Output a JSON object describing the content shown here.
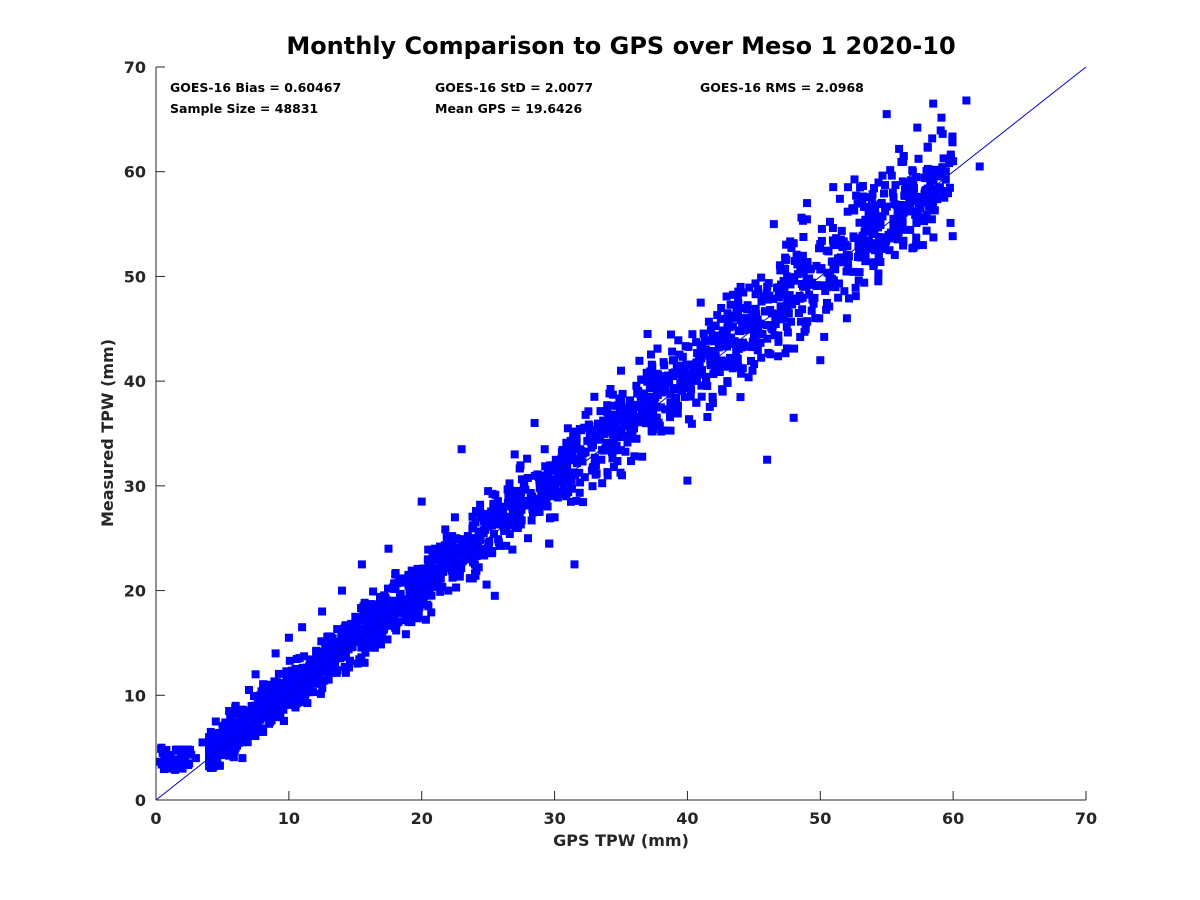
{
  "chart_data": {
    "type": "scatter",
    "title": "Monthly Comparison to GPS over Meso 1 2020-10",
    "xlabel": "GPS TPW (mm)",
    "ylabel": "Measured TPW (mm)",
    "xlim": [
      0,
      70
    ],
    "ylim": [
      0,
      70
    ],
    "xticks": [
      "0",
      "10",
      "20",
      "30",
      "40",
      "50",
      "60",
      "70"
    ],
    "yticks": [
      "0",
      "10",
      "20",
      "30",
      "40",
      "50",
      "60",
      "70"
    ],
    "grid": false,
    "marker_color": "#0000ff",
    "reference_line": {
      "from": [
        0,
        0
      ],
      "to": [
        70,
        70
      ],
      "color": "#0000cc"
    },
    "stats": {
      "bias": "GOES-16 Bias = 0.60467",
      "std": "GOES-16 StD = 2.0077",
      "rms": "GOES-16 RMS = 2.0968",
      "sample_size": "Sample Size = 48831",
      "mean_gps": "Mean GPS = 19.6426"
    },
    "series": [
      {
        "sample_points": [
          [
            0.5,
            4.5
          ],
          [
            1.0,
            4.3
          ],
          [
            1.5,
            4.8
          ],
          [
            2.0,
            3.0
          ],
          [
            2.5,
            3.5
          ],
          [
            3.0,
            4.0
          ],
          [
            3.5,
            5.5
          ],
          [
            4.0,
            6.0
          ],
          [
            4.5,
            7.5
          ],
          [
            5.0,
            5.0
          ],
          [
            5.5,
            8.5
          ],
          [
            6.0,
            9.0
          ],
          [
            6.5,
            4.0
          ],
          [
            7.0,
            10.5
          ],
          [
            7.5,
            12.0
          ],
          [
            8.0,
            6.5
          ],
          [
            8.5,
            11.0
          ],
          [
            9.0,
            14.0
          ],
          [
            9.5,
            9.0
          ],
          [
            10.0,
            15.5
          ],
          [
            10.5,
            12.0
          ],
          [
            11.0,
            16.5
          ],
          [
            12.0,
            13.0
          ],
          [
            12.5,
            18.0
          ],
          [
            13.0,
            11.5
          ],
          [
            14.0,
            20.0
          ],
          [
            15.0,
            17.5
          ],
          [
            15.5,
            22.5
          ],
          [
            16.0,
            15.0
          ],
          [
            17.0,
            19.0
          ],
          [
            17.5,
            24.0
          ],
          [
            18.0,
            17.0
          ],
          [
            19.0,
            21.5
          ],
          [
            20.0,
            28.5
          ],
          [
            20.5,
            18.5
          ],
          [
            21.0,
            24.0
          ],
          [
            22.0,
            20.0
          ],
          [
            22.5,
            27.0
          ],
          [
            23.0,
            33.5
          ],
          [
            24.0,
            22.5
          ],
          [
            25.0,
            29.5
          ],
          [
            25.5,
            19.5
          ],
          [
            26.0,
            28.0
          ],
          [
            27.0,
            33.0
          ],
          [
            28.0,
            25.0
          ],
          [
            28.5,
            36.0
          ],
          [
            29.0,
            31.0
          ],
          [
            30.0,
            27.0
          ],
          [
            31.0,
            35.5
          ],
          [
            31.5,
            22.5
          ],
          [
            32.0,
            33.0
          ],
          [
            33.0,
            38.5
          ],
          [
            34.0,
            31.0
          ],
          [
            35.0,
            41.0
          ],
          [
            36.0,
            36.0
          ],
          [
            37.0,
            44.5
          ],
          [
            38.0,
            37.5
          ],
          [
            39.0,
            42.0
          ],
          [
            40.0,
            30.5
          ],
          [
            41.0,
            47.5
          ],
          [
            42.0,
            44.0
          ],
          [
            43.0,
            40.0
          ],
          [
            44.0,
            49.0
          ],
          [
            45.0,
            45.0
          ],
          [
            46.0,
            32.5
          ],
          [
            46.5,
            55.0
          ],
          [
            47.5,
            50.0
          ],
          [
            48.0,
            36.5
          ],
          [
            49.0,
            57.0
          ],
          [
            50.0,
            42.0
          ],
          [
            51.0,
            53.0
          ],
          [
            52.0,
            46.0
          ],
          [
            53.0,
            58.5
          ],
          [
            54.0,
            51.0
          ],
          [
            55.0,
            65.5
          ],
          [
            56.0,
            55.5
          ],
          [
            57.0,
            59.0
          ],
          [
            58.0,
            60.0
          ],
          [
            58.5,
            66.5
          ],
          [
            59.0,
            58.5
          ],
          [
            60.0,
            61.0
          ],
          [
            61.0,
            66.8
          ],
          [
            62.0,
            60.5
          ]
        ]
      }
    ]
  }
}
